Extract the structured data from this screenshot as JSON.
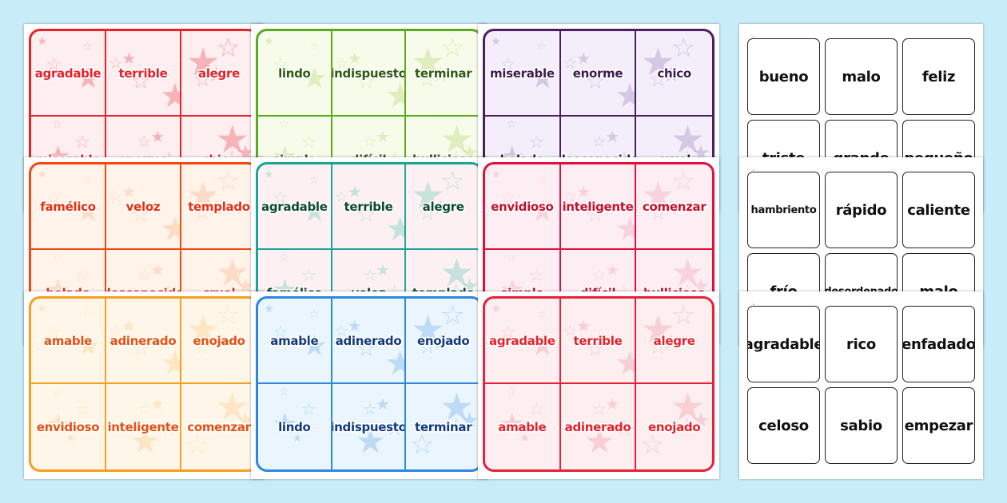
{
  "sheets": [
    {
      "style": "color",
      "border": "#e8202a",
      "bg": "#fdeef0",
      "text": "#e8202a",
      "star": "#e8202a",
      "words": [
        "agradable",
        "terrible",
        "alegre",
        "miserable",
        "enorme",
        "chico"
      ]
    },
    {
      "style": "color",
      "border": "#5aaa1e",
      "bg": "#f6fbea",
      "text": "#2f5a10",
      "star": "#a8cc50",
      "words": [
        "lindo",
        "indispuesto",
        "terminar",
        "simple",
        "difícil",
        "bullicioso"
      ]
    },
    {
      "style": "color",
      "border": "#4a1f5e",
      "bg": "#f3eefa",
      "text": "#3c1a50",
      "star": "#8a6aac",
      "words": [
        "miserable",
        "enorme",
        "chico",
        "helado",
        "desconocido",
        "cruel"
      ]
    },
    {
      "style": "bw",
      "words": [
        "bueno",
        "malo",
        "feliz",
        "triste",
        "grande",
        "pequeño"
      ]
    },
    {
      "style": "color",
      "border": "#f04a10",
      "bg": "#fff3ea",
      "text": "#e8300e",
      "star": "#f5a070",
      "words": [
        "famélico",
        "veloz",
        "templado",
        "helado",
        "desconocido",
        "cruel"
      ]
    },
    {
      "style": "color",
      "border": "#1aa59a",
      "bg": "#fdf0f2",
      "text": "#0d4a30",
      "star": "#40c0a8",
      "words": [
        "agradable",
        "terrible",
        "alegre",
        "famélico",
        "veloz",
        "templado"
      ]
    },
    {
      "style": "color",
      "border": "#e0103c",
      "bg": "#fdeef3",
      "text": "#c8102e",
      "star": "#e890b0",
      "words": [
        "envidioso",
        "inteligente",
        "comenzar",
        "simple",
        "difícil",
        "bullicioso"
      ]
    },
    {
      "style": "bw",
      "words": [
        "hambriento",
        "rápido",
        "caliente",
        "frío",
        "desordenado",
        "malo"
      ]
    },
    {
      "style": "color",
      "border": "#f5a020",
      "bg": "#fff6ea",
      "text": "#e8500e",
      "star": "#f5c060",
      "words": [
        "amable",
        "adinerado",
        "enojado",
        "envidioso",
        "inteligente",
        "comenzar"
      ]
    },
    {
      "style": "color",
      "border": "#2d88e0",
      "bg": "#eaf5fd",
      "text": "#123a80",
      "star": "#4a9ae0",
      "words": [
        "amable",
        "adinerado",
        "enojado",
        "lindo",
        "indispuesto",
        "terminar"
      ]
    },
    {
      "style": "color",
      "border": "#e8203a",
      "bg": "#fdeef0",
      "text": "#e8202a",
      "star": "#e88090",
      "words": [
        "agradable",
        "terrible",
        "alegre",
        "amable",
        "adinerado",
        "enojado"
      ]
    },
    {
      "style": "bw",
      "words": [
        "agradable",
        "rico",
        "enfadado",
        "celoso",
        "sabio",
        "empezar"
      ]
    }
  ]
}
